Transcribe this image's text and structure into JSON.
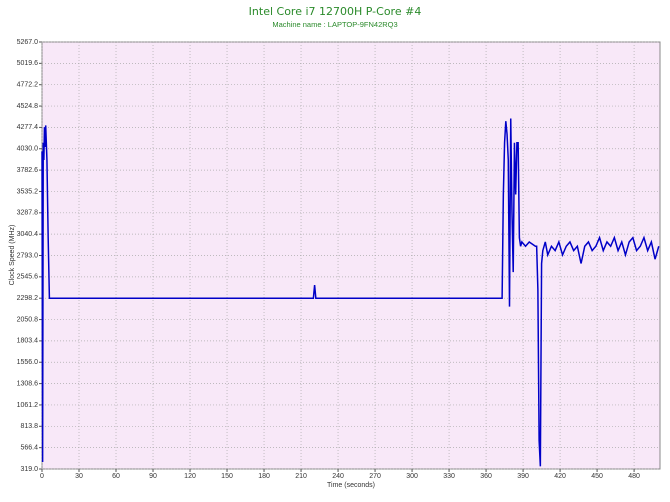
{
  "chart_data": {
    "type": "line",
    "title": "Intel Core i7 12700H P-Core #4",
    "subtitle": "Machine name : LAPTOP-9FN42RQ3",
    "x_label": "Time (seconds)",
    "y_label": "Clock Speed (MHz)",
    "xlim": [
      0,
      501
    ],
    "ylim": [
      319,
      5267
    ],
    "xticks": [
      0,
      30,
      60,
      90,
      120,
      150,
      180,
      210,
      240,
      270,
      300,
      330,
      360,
      390,
      420,
      450,
      480
    ],
    "yticks": [
      {
        "value": 319,
        "label": "319.0"
      },
      {
        "value": 566.4,
        "label": "566.4"
      },
      {
        "value": 813.8,
        "label": "813.8"
      },
      {
        "value": 1061.2,
        "label": "1061.2"
      },
      {
        "value": 1308.6,
        "label": "1308.6"
      },
      {
        "value": 1556,
        "label": "1556.0"
      },
      {
        "value": 1803.4,
        "label": "1803.4"
      },
      {
        "value": 2050.8,
        "label": "2050.8"
      },
      {
        "value": 2298.2,
        "label": "2298.2"
      },
      {
        "value": 2545.6,
        "label": "2545.6"
      },
      {
        "value": 2793,
        "label": "2793.0"
      },
      {
        "value": 3040.4,
        "label": "3040.4"
      },
      {
        "value": 3287.8,
        "label": "3287.8"
      },
      {
        "value": 3535.2,
        "label": "3535.2"
      },
      {
        "value": 3782.6,
        "label": "3782.6"
      },
      {
        "value": 4030,
        "label": "4030.0"
      },
      {
        "value": 4277.4,
        "label": "4277.4"
      },
      {
        "value": 4524.8,
        "label": "4524.8"
      },
      {
        "value": 4772.2,
        "label": "4772.2"
      },
      {
        "value": 5019.6,
        "label": "5019.6"
      },
      {
        "value": 5267,
        "label": "5267.0"
      }
    ],
    "grid": true,
    "x": [
      0,
      0.5,
      1,
      1.5,
      2,
      2.5,
      3,
      4,
      5,
      6,
      220,
      221,
      222,
      373,
      374,
      375,
      376,
      377,
      378,
      379,
      380,
      381,
      382,
      383,
      384,
      385,
      386,
      387,
      388,
      389,
      392,
      395,
      400,
      401,
      402,
      403,
      404,
      405,
      406,
      408,
      410,
      413,
      416,
      419,
      422,
      425,
      428,
      431,
      434,
      437,
      440,
      443,
      446,
      449,
      452,
      455,
      458,
      461,
      464,
      467,
      470,
      473,
      476,
      479,
      482,
      485,
      488,
      491,
      494,
      497,
      500
    ],
    "series": [
      {
        "name": "P-Core #4",
        "color": "#0000c8",
        "values": [
          4000,
          400,
          4100,
          3900,
          4280,
          4050,
          4300,
          3900,
          3000,
          2298,
          2298,
          2450,
          2298,
          2298,
          3500,
          4100,
          4350,
          4200,
          3900,
          2200,
          4380,
          3300,
          2600,
          4100,
          3500,
          4100,
          4100,
          3000,
          2900,
          2950,
          2900,
          2950,
          2900,
          2900,
          2400,
          650,
          350,
          2700,
          2850,
          2950,
          2800,
          2900,
          2850,
          2950,
          2800,
          2900,
          2950,
          2850,
          2900,
          2700,
          2900,
          2950,
          2850,
          2900,
          3000,
          2850,
          2950,
          2900,
          3000,
          2850,
          2950,
          2800,
          2950,
          3000,
          2850,
          2900,
          3000,
          2850,
          2950,
          2750,
          2900
        ]
      }
    ]
  }
}
